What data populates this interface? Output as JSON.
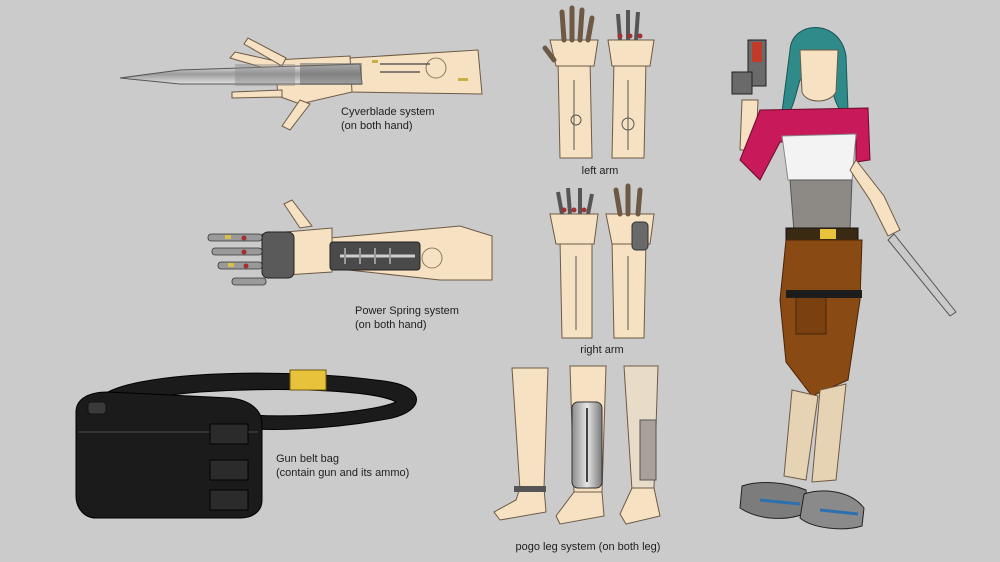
{
  "captions": {
    "cyverblade": {
      "line1": "Cyverblade system",
      "line2": "(on both hand)"
    },
    "power_spring": {
      "line1": "Power Spring system",
      "line2": "(on both hand)"
    },
    "gun_belt_bag": {
      "line1": "Gun belt bag",
      "line2": "(contain gun and its ammo)"
    },
    "left_arm": "left arm",
    "right_arm": "right arm",
    "pogo_leg": "pogo leg system (on both leg)"
  },
  "colors": {
    "background": "#cbcbcb",
    "skin": "#f6e1c2",
    "metal": "#b9b9b9",
    "dark_metal": "#4a4a4a",
    "hair": "#2f8a8a",
    "jacket": "#c8195a",
    "pants": "#8a4a14",
    "belt_yellow": "#e8c23a",
    "bag_black": "#1b1b1b",
    "shoe_blue": "#2e6fb0"
  }
}
